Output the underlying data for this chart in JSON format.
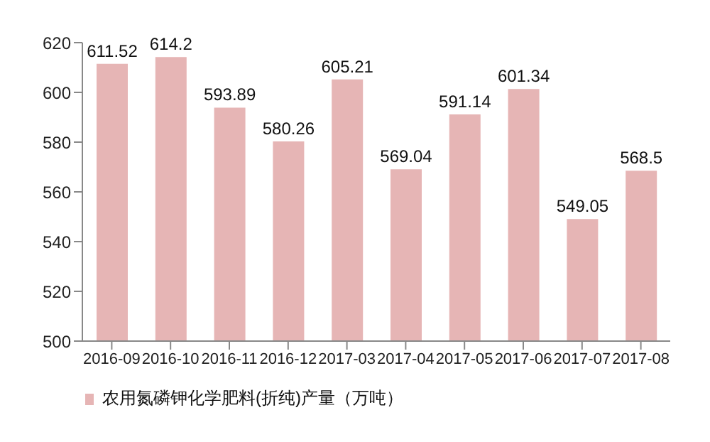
{
  "chart_data": {
    "type": "bar",
    "categories": [
      "2016-09",
      "2016-10",
      "2016-11",
      "2016-12",
      "2017-03",
      "2017-04",
      "2017-05",
      "2017-06",
      "2017-07",
      "2017-08"
    ],
    "series": [
      {
        "name": "农用氮磷钾化学肥料(折纯)产量（万吨）",
        "color": "#e6b5b5",
        "values": [
          611.52,
          614.2,
          593.89,
          580.26,
          605.21,
          569.04,
          591.14,
          601.34,
          549.05,
          568.5
        ]
      }
    ],
    "ylim": [
      500,
      620
    ],
    "yticks": [
      500,
      520,
      540,
      560,
      580,
      600,
      620
    ],
    "data_labels": true,
    "grid": false,
    "legend": "bottom left"
  }
}
